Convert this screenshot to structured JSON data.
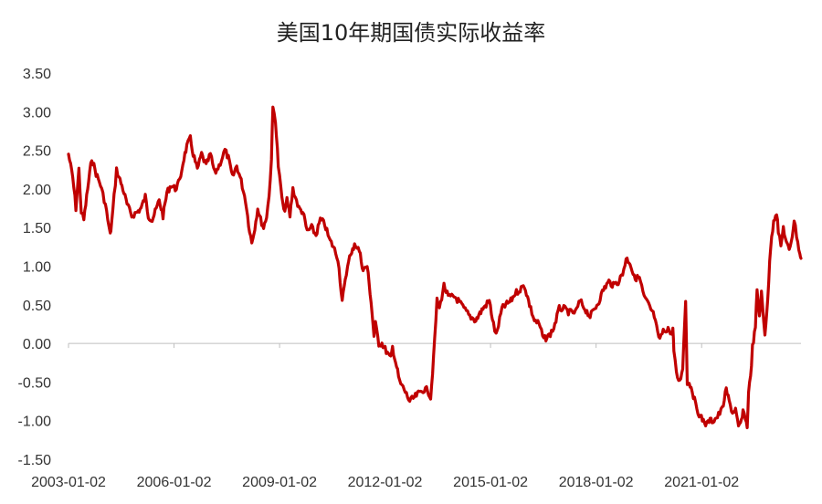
{
  "chart_data": {
    "type": "line",
    "title": "美国10年期国债实际收益率",
    "xlabel": "",
    "ylabel": "",
    "ylim": [
      -1.5,
      3.5
    ],
    "yticks": [
      "3.50",
      "3.00",
      "2.50",
      "2.00",
      "1.50",
      "1.00",
      "0.50",
      "0.00",
      "-0.50",
      "-1.00",
      "-1.50"
    ],
    "xlim": [
      "2003-01-02",
      "2023-10-31"
    ],
    "xticks": [
      "2003-01-02",
      "2006-01-02",
      "2009-01-02",
      "2012-01-02",
      "2015-01-02",
      "2018-01-02",
      "2021-01-02"
    ],
    "grid": false,
    "legend": "none",
    "colors": {
      "line": "#C00000",
      "axis": "#BFBFBF"
    },
    "series": [
      {
        "name": "",
        "x": [
          "2003-01-02",
          "2003-02-15",
          "2003-03-20",
          "2003-04-20",
          "2003-05-15",
          "2003-06-10",
          "2003-07-20",
          "2003-09-01",
          "2003-10-15",
          "2003-12-01",
          "2004-01-20",
          "2004-03-10",
          "2004-03-25",
          "2004-05-15",
          "2004-06-10",
          "2004-07-20",
          "2004-09-01",
          "2004-10-20",
          "2004-12-15",
          "2005-01-25",
          "2005-03-10",
          "2005-04-10",
          "2005-05-20",
          "2005-06-20",
          "2005-08-01",
          "2005-09-10",
          "2005-10-20",
          "2005-12-01",
          "2006-01-15",
          "2006-03-01",
          "2006-04-15",
          "2006-05-15",
          "2006-06-20",
          "2006-07-20",
          "2006-09-01",
          "2006-10-15",
          "2006-12-01",
          "2007-01-15",
          "2007-03-01",
          "2007-04-15",
          "2007-06-15",
          "2007-07-20",
          "2007-09-01",
          "2007-10-15",
          "2007-12-01",
          "2008-01-15",
          "2008-02-15",
          "2008-03-20",
          "2008-04-20",
          "2008-05-20",
          "2008-06-20",
          "2008-07-20",
          "2008-08-20",
          "2008-09-15",
          "2008-10-10",
          "2008-10-25",
          "2008-11-20",
          "2008-12-20",
          "2009-01-15",
          "2009-02-15",
          "2009-03-20",
          "2009-04-20",
          "2009-05-20",
          "2009-06-15",
          "2009-07-20",
          "2009-09-01",
          "2009-10-15",
          "2009-12-01",
          "2010-01-15",
          "2010-03-01",
          "2010-04-15",
          "2010-06-01",
          "2010-07-15",
          "2010-08-31",
          "2010-10-15",
          "2010-11-15",
          "2010-12-20",
          "2011-01-20",
          "2011-02-20",
          "2011-04-10",
          "2011-05-20",
          "2011-07-01",
          "2011-08-10",
          "2011-09-10",
          "2011-09-25",
          "2011-10-30",
          "2011-12-01",
          "2012-01-15",
          "2012-03-01",
          "2012-03-20",
          "2012-05-01",
          "2012-06-01",
          "2012-07-20",
          "2012-09-15",
          "2012-11-01",
          "2012-12-15",
          "2013-02-01",
          "2013-03-20",
          "2013-04-20",
          "2013-05-20",
          "2013-06-25",
          "2013-07-20",
          "2013-09-05",
          "2013-10-20",
          "2013-12-30",
          "2014-02-01",
          "2014-04-01",
          "2014-06-01",
          "2014-08-01",
          "2014-10-15",
          "2014-12-20",
          "2015-02-01",
          "2015-03-01",
          "2015-05-01",
          "2015-06-10",
          "2015-08-01",
          "2015-09-15",
          "2015-11-05",
          "2015-12-20",
          "2016-02-11",
          "2016-04-01",
          "2016-05-20",
          "2016-07-08",
          "2016-09-01",
          "2016-10-20",
          "2016-12-15",
          "2017-02-01",
          "2017-04-01",
          "2017-06-01",
          "2017-07-20",
          "2017-09-07",
          "2017-11-01",
          "2017-12-20",
          "2018-02-01",
          "2018-03-20",
          "2018-05-15",
          "2018-07-01",
          "2018-08-20",
          "2018-10-05",
          "2018-11-10",
          "2018-12-20",
          "2019-02-01",
          "2019-03-28",
          "2019-05-15",
          "2019-07-01",
          "2019-08-30",
          "2019-10-15",
          "2019-12-01",
          "2020-01-20",
          "2020-02-25",
          "2020-03-09",
          "2020-03-20",
          "2020-04-15",
          "2020-05-20",
          "2020-06-20",
          "2020-07-20",
          "2020-08-06",
          "2020-09-15",
          "2020-11-01",
          "2020-12-20",
          "2021-01-20",
          "2021-02-25",
          "2021-03-20",
          "2021-05-01",
          "2021-06-15",
          "2021-08-04",
          "2021-09-15",
          "2021-10-15",
          "2021-11-20",
          "2021-12-20",
          "2022-01-20",
          "2022-02-20",
          "2022-03-08",
          "2022-04-01",
          "2022-04-20",
          "2022-05-05",
          "2022-05-25",
          "2022-06-14",
          "2022-07-15",
          "2022-08-01",
          "2022-08-25",
          "2022-09-15",
          "2022-10-21",
          "2022-11-20",
          "2022-12-20",
          "2023-01-20",
          "2023-02-20",
          "2023-03-10",
          "2023-04-05",
          "2023-05-01",
          "2023-06-01",
          "2023-07-01",
          "2023-08-01",
          "2023-08-21",
          "2023-09-15",
          "2023-10-20",
          "2023-10-31"
        ],
        "y": [
          2.45,
          2.15,
          1.75,
          2.25,
          1.7,
          1.6,
          2.0,
          2.4,
          2.2,
          2.05,
          1.8,
          1.4,
          1.55,
          2.25,
          2.15,
          2.0,
          1.8,
          1.65,
          1.7,
          1.75,
          1.9,
          1.65,
          1.6,
          1.7,
          1.85,
          1.65,
          1.95,
          2.05,
          2.0,
          2.1,
          2.4,
          2.55,
          2.65,
          2.45,
          2.25,
          2.45,
          2.3,
          2.45,
          2.2,
          2.3,
          2.5,
          2.4,
          2.15,
          2.3,
          2.1,
          1.85,
          1.55,
          1.3,
          1.5,
          1.75,
          1.6,
          1.5,
          1.65,
          1.9,
          2.4,
          3.05,
          2.9,
          2.3,
          2.0,
          1.7,
          1.85,
          1.65,
          2.0,
          1.9,
          1.75,
          1.7,
          1.45,
          1.5,
          1.4,
          1.6,
          1.55,
          1.35,
          1.25,
          1.1,
          0.55,
          0.8,
          1.1,
          1.15,
          1.3,
          1.2,
          0.95,
          1.0,
          0.55,
          0.1,
          0.25,
          0.0,
          0.0,
          -0.1,
          -0.2,
          -0.05,
          -0.3,
          -0.5,
          -0.6,
          -0.75,
          -0.7,
          -0.65,
          -0.6,
          -0.6,
          -0.7,
          -0.2,
          0.55,
          0.45,
          0.75,
          0.6,
          0.6,
          0.55,
          0.45,
          0.35,
          0.3,
          0.45,
          0.55,
          0.25,
          0.1,
          0.45,
          0.5,
          0.55,
          0.65,
          0.7,
          0.75,
          0.5,
          0.3,
          0.25,
          0.05,
          0.1,
          0.2,
          0.45,
          0.45,
          0.4,
          0.4,
          0.55,
          0.45,
          0.35,
          0.45,
          0.55,
          0.7,
          0.8,
          0.75,
          0.8,
          0.9,
          1.1,
          1.05,
          0.85,
          0.85,
          0.6,
          0.5,
          0.35,
          0.05,
          0.15,
          0.2,
          0.1,
          0.2,
          -0.1,
          -0.4,
          -0.5,
          -0.3,
          0.55,
          -0.5,
          -0.55,
          -0.8,
          -0.95,
          -1.0,
          -1.05,
          -1.0,
          -1.0,
          -0.95,
          -0.85,
          -0.6,
          -0.75,
          -0.9,
          -0.85,
          -1.1,
          -1.0,
          -0.9,
          -0.95,
          -1.1,
          -0.6,
          -0.45,
          -0.05,
          0.2,
          0.7,
          0.35,
          0.65,
          0.1,
          0.6,
          1.25,
          1.6,
          1.7,
          1.45,
          1.25,
          1.5,
          1.3,
          1.2,
          1.4,
          1.6,
          1.4,
          1.15,
          1.1
        ]
      }
    ]
  }
}
